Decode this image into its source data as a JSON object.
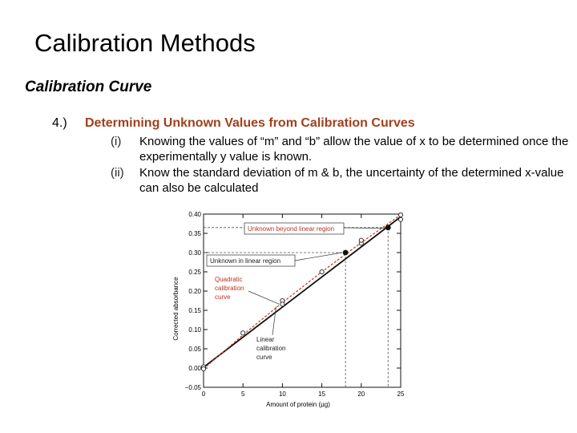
{
  "slide": {
    "title": "Calibration Methods",
    "subtitle": "Calibration Curve",
    "point_number": "4.)",
    "point_heading": "Determining Unknown Values from Calibration Curves",
    "items": [
      {
        "num": "(i)",
        "text": "Knowing the values of “m” and “b” allow the value of x to be determined once the experimentally y value is known."
      },
      {
        "num": "(ii)",
        "text": "Know the standard deviation of m & b, the uncertainty of the determined x-value can also be calculated"
      }
    ]
  },
  "chart_data": {
    "type": "scatter",
    "xlabel": "Amount of protein (µg)",
    "ylabel": "Corrected absorbance",
    "xlim": [
      0,
      25
    ],
    "ylim": [
      -0.05,
      0.4
    ],
    "x_ticks": [
      0,
      5,
      10,
      15,
      20,
      25
    ],
    "x_tick_labels": [
      "0",
      "5",
      "10",
      "15",
      "20",
      "25"
    ],
    "y_ticks": [
      -0.05,
      0.0,
      0.05,
      0.1,
      0.15,
      0.2,
      0.25,
      0.3,
      0.35,
      0.4
    ],
    "y_tick_labels": [
      "−0.05",
      "0.00",
      "0.05",
      "0.10",
      "0.15",
      "0.20",
      "0.25",
      "0.30",
      "0.35",
      "0.40"
    ],
    "grid": false,
    "series": [
      {
        "kind": "standards",
        "x": [
          0,
          0,
          5,
          10,
          10,
          15,
          20,
          20,
          25,
          25
        ],
        "y": [
          0.003,
          -0.002,
          0.091,
          0.175,
          0.166,
          0.25,
          0.324,
          0.332,
          0.386,
          0.398
        ]
      },
      {
        "kind": "linear",
        "x": [
          0,
          25
        ],
        "y": [
          0.002,
          0.393
        ]
      },
      {
        "kind": "quadratic",
        "x": [
          0,
          5,
          10,
          15,
          20,
          25
        ],
        "y": [
          -0.002,
          0.086,
          0.17,
          0.25,
          0.326,
          0.398
        ]
      },
      {
        "kind": "unknowns",
        "x": [
          18.0,
          23.4
        ],
        "y": [
          0.3,
          0.365
        ]
      }
    ],
    "annotations": [
      {
        "text": "Unknown beyond linear region",
        "color": "#b8342a"
      },
      {
        "text": "Unknown in linear region",
        "color": "#222222"
      },
      {
        "lines": [
          "Quadratic",
          "calibration",
          "curve"
        ],
        "color": "#b8342a"
      },
      {
        "lines": [
          "Linear",
          "calibration",
          "curve"
        ],
        "color": "#222222"
      }
    ],
    "colors": {
      "linear": "#111111",
      "quadratic": "#c4442f",
      "axis": "#111111"
    }
  }
}
